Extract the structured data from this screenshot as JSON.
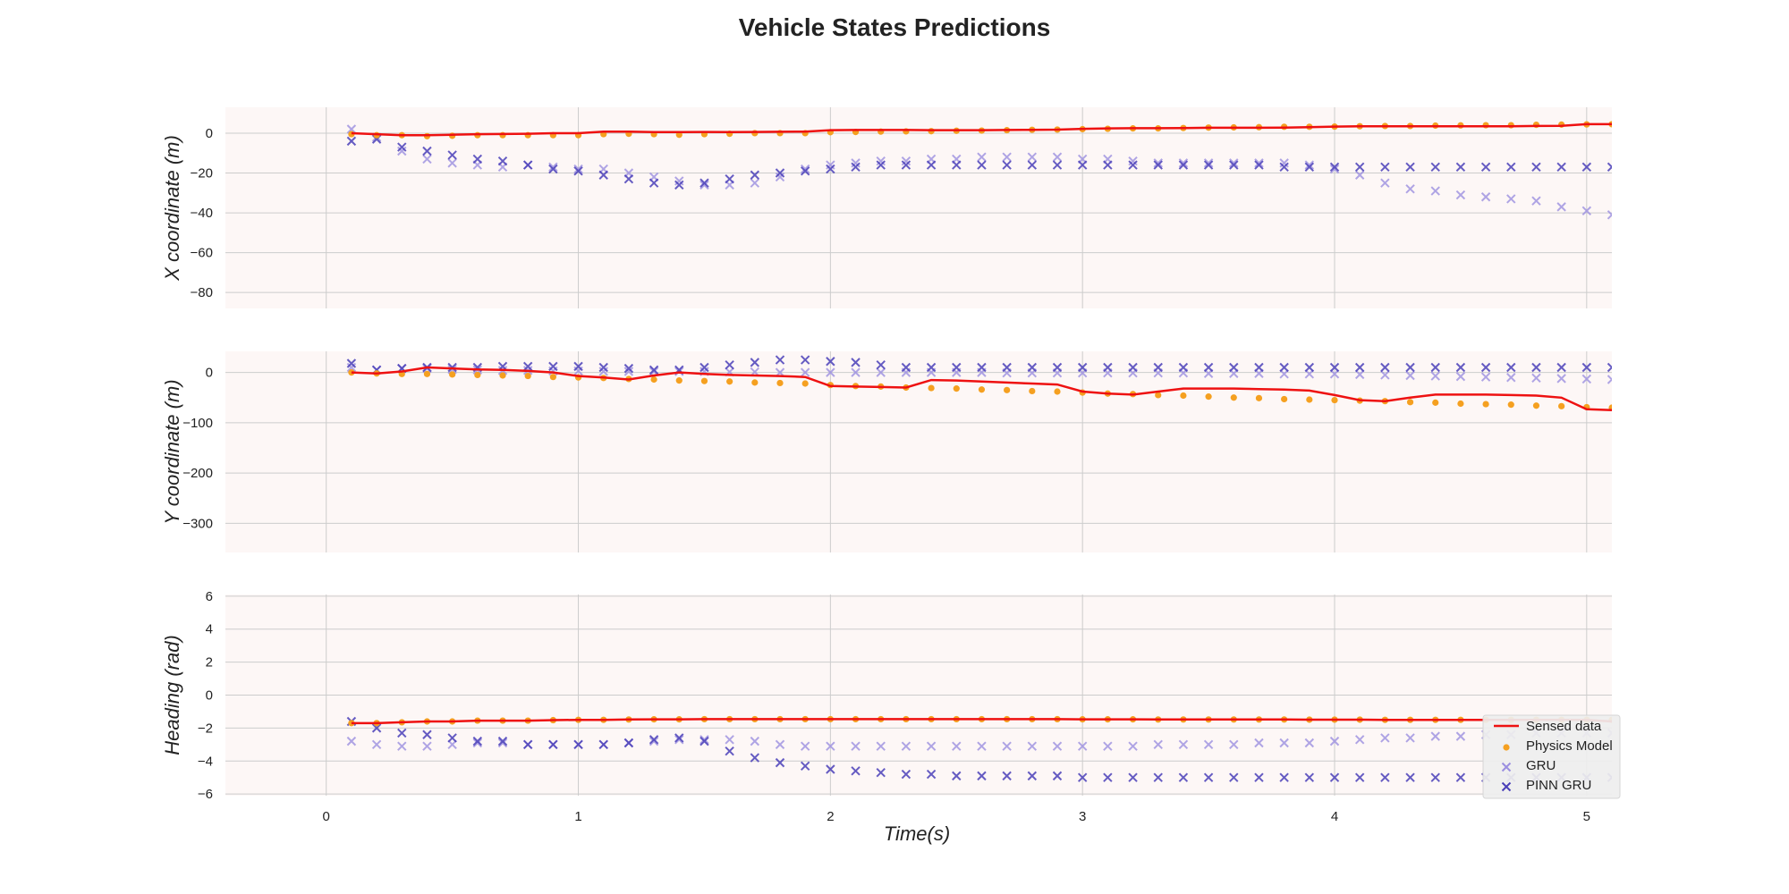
{
  "chart_data": {
    "type": "scatter",
    "title": "Vehicle States Predictions",
    "xlabel": "Time(s)",
    "xlim": [
      -0.4,
      5.1
    ],
    "xticks": [
      0,
      1,
      2,
      3,
      4,
      5
    ],
    "grid": true,
    "legend": {
      "placement": "lower-right",
      "entries": [
        "Sensed data",
        "Physics Model",
        "GRU",
        "PINN GRU"
      ]
    },
    "colors": {
      "sensed": "#ee1111",
      "physics": "#f5a020",
      "gru": "#9b8fe0",
      "pinn": "#4a3fb8",
      "panel_bg": "#fdf7f6",
      "grid": "#cccccc"
    },
    "x": [
      0.1,
      0.2,
      0.3,
      0.4,
      0.5,
      0.6,
      0.7,
      0.8,
      0.9,
      1.0,
      1.1,
      1.2,
      1.3,
      1.4,
      1.5,
      1.6,
      1.7,
      1.8,
      1.9,
      2.0,
      2.1,
      2.2,
      2.3,
      2.4,
      2.5,
      2.6,
      2.7,
      2.8,
      2.9,
      3.0,
      3.1,
      3.2,
      3.3,
      3.4,
      3.5,
      3.6,
      3.7,
      3.8,
      3.9,
      4.0,
      4.1,
      4.2,
      4.3,
      4.4,
      4.5,
      4.6,
      4.7,
      4.8,
      4.9,
      5.0,
      5.1
    ],
    "subplots": [
      {
        "ylabel": "X coordinate (m)",
        "ylim": [
          -88,
          13
        ],
        "yticks": [
          0,
          -20,
          -40,
          -60,
          -80
        ],
        "series": [
          {
            "name": "Sensed data",
            "kind": "line",
            "values": [
              0,
              -0.5,
              -1,
              -1,
              -0.8,
              -0.5,
              -0.4,
              -0.3,
              0,
              0,
              0.8,
              0.8,
              0.5,
              0.5,
              0.6,
              0.5,
              0.6,
              0.7,
              0.8,
              1.5,
              1.6,
              1.6,
              1.6,
              1.5,
              1.5,
              1.5,
              1.6,
              1.7,
              1.8,
              2.2,
              2.4,
              2.5,
              2.5,
              2.6,
              2.7,
              2.7,
              2.7,
              2.8,
              3,
              3.3,
              3.5,
              3.5,
              3.5,
              3.5,
              3.5,
              3.5,
              3.5,
              3.6,
              3.7,
              4.5,
              4.5
            ]
          },
          {
            "name": "Physics Model",
            "kind": "dots",
            "values": [
              -0.5,
              -1,
              -1,
              -1.5,
              -1.3,
              -1,
              -1,
              -1,
              -1,
              -1,
              -0.5,
              -0.3,
              -0.5,
              -0.8,
              -0.5,
              -0.3,
              0,
              0,
              0,
              0.5,
              0.6,
              0.8,
              0.9,
              1,
              1.2,
              1.3,
              1.5,
              1.7,
              1.8,
              2,
              2.2,
              2.4,
              2.4,
              2.6,
              2.8,
              2.9,
              3,
              3.2,
              3.2,
              3.3,
              3.5,
              3.6,
              3.6,
              3.8,
              3.9,
              4,
              4,
              4.2,
              4.3,
              4.4,
              4.5
            ]
          },
          {
            "name": "GRU",
            "kind": "x",
            "values": [
              2,
              -2,
              -9,
              -13,
              -15,
              -16,
              -17,
              -16,
              -17,
              -18,
              -18,
              -20,
              -22,
              -24,
              -26,
              -26,
              -25,
              -22,
              -18,
              -16,
              -15,
              -14,
              -14,
              -13,
              -13,
              -12,
              -12,
              -12,
              -12,
              -13,
              -13,
              -14,
              -15,
              -15,
              -15,
              -15,
              -15,
              -15,
              -16,
              -18,
              -21,
              -25,
              -28,
              -29,
              -31,
              -32,
              -33,
              -34,
              -37,
              -39,
              -41
            ]
          },
          {
            "name": "PINN GRU",
            "kind": "x",
            "values": [
              -4,
              -3,
              -7,
              -9,
              -11,
              -13,
              -14,
              -16,
              -18,
              -19,
              -21,
              -23,
              -25,
              -26,
              -25,
              -23,
              -21,
              -20,
              -19,
              -18,
              -17,
              -16,
              -16,
              -16,
              -16,
              -16,
              -16,
              -16,
              -16,
              -16,
              -16,
              -16,
              -16,
              -16,
              -16,
              -16,
              -16,
              -17,
              -17,
              -17,
              -17,
              -17,
              -17,
              -17,
              -17,
              -17,
              -17,
              -17,
              -17,
              -17,
              -17
            ]
          }
        ]
      },
      {
        "ylabel": "Y coordinate (m)",
        "ylim": [
          -358,
          42
        ],
        "yticks": [
          0,
          -100,
          -200,
          -300
        ],
        "series": [
          {
            "name": "Sensed data",
            "kind": "line",
            "values": [
              0,
              -2,
              2,
              10,
              8,
              6,
              5,
              3,
              0,
              -7,
              -10,
              -14,
              -6,
              0,
              -3,
              -5,
              -6,
              -7,
              -9,
              -27,
              -28,
              -29,
              -30,
              -15,
              -16,
              -18,
              -20,
              -22,
              -24,
              -38,
              -42,
              -44,
              -38,
              -32,
              -32,
              -32,
              -33,
              -34,
              -36,
              -45,
              -55,
              -57,
              -50,
              -44,
              -44,
              -44,
              -45,
              -46,
              -50,
              -73,
              -75
            ]
          },
          {
            "name": "Physics Model",
            "kind": "dots",
            "values": [
              0,
              -2,
              -3,
              -3,
              -4,
              -5,
              -6,
              -7,
              -9,
              -10,
              -11,
              -13,
              -14,
              -16,
              -17,
              -18,
              -20,
              -21,
              -22,
              -25,
              -27,
              -28,
              -30,
              -31,
              -32,
              -34,
              -35,
              -37,
              -38,
              -40,
              -42,
              -43,
              -45,
              -46,
              -48,
              -50,
              -51,
              -53,
              -54,
              -55,
              -56,
              -57,
              -59,
              -60,
              -62,
              -63,
              -64,
              -66,
              -67,
              -69,
              -70
            ]
          },
          {
            "name": "GRU",
            "kind": "x",
            "values": [
              10,
              5,
              8,
              8,
              6,
              5,
              4,
              4,
              3,
              3,
              2,
              2,
              2,
              2,
              2,
              1,
              1,
              0,
              0,
              0,
              0,
              0,
              0,
              0,
              0,
              0,
              -1,
              -1,
              -1,
              -1,
              -1,
              -1,
              -1,
              -1,
              -2,
              -2,
              -2,
              -3,
              -3,
              -3,
              -4,
              -5,
              -6,
              -7,
              -8,
              -9,
              -10,
              -11,
              -12,
              -13,
              -14
            ]
          },
          {
            "name": "PINN GRU",
            "kind": "x",
            "values": [
              18,
              5,
              8,
              10,
              10,
              10,
              12,
              12,
              12,
              12,
              10,
              8,
              5,
              5,
              10,
              15,
              20,
              25,
              25,
              22,
              20,
              15,
              10,
              10,
              10,
              10,
              10,
              10,
              10,
              10,
              10,
              10,
              10,
              10,
              10,
              10,
              10,
              10,
              10,
              10,
              10,
              10,
              10,
              10,
              10,
              10,
              10,
              10,
              10,
              10,
              10
            ]
          }
        ]
      },
      {
        "ylabel": "Heading (rad)",
        "ylim": [
          -6.1,
          6.1
        ],
        "yticks": [
          6,
          4,
          2,
          0,
          -2,
          -4,
          -6
        ],
        "series": [
          {
            "name": "Sensed data",
            "kind": "line",
            "values": [
              -1.7,
              -1.7,
              -1.65,
              -1.6,
              -1.6,
              -1.55,
              -1.55,
              -1.55,
              -1.52,
              -1.5,
              -1.5,
              -1.48,
              -1.47,
              -1.47,
              -1.46,
              -1.46,
              -1.46,
              -1.46,
              -1.46,
              -1.46,
              -1.46,
              -1.46,
              -1.46,
              -1.46,
              -1.46,
              -1.46,
              -1.46,
              -1.46,
              -1.46,
              -1.47,
              -1.47,
              -1.47,
              -1.48,
              -1.48,
              -1.48,
              -1.48,
              -1.48,
              -1.48,
              -1.49,
              -1.49,
              -1.49,
              -1.5,
              -1.5,
              -1.5,
              -1.5,
              -1.5,
              -1.5,
              -1.5,
              -1.5,
              -1.5,
              -1.6
            ]
          },
          {
            "name": "Physics Model",
            "kind": "dots",
            "values": [
              -1.7,
              -1.7,
              -1.65,
              -1.6,
              -1.6,
              -1.55,
              -1.55,
              -1.55,
              -1.52,
              -1.5,
              -1.5,
              -1.48,
              -1.47,
              -1.47,
              -1.46,
              -1.46,
              -1.46,
              -1.46,
              -1.46,
              -1.46,
              -1.46,
              -1.46,
              -1.46,
              -1.46,
              -1.46,
              -1.46,
              -1.46,
              -1.46,
              -1.46,
              -1.47,
              -1.47,
              -1.47,
              -1.48,
              -1.48,
              -1.48,
              -1.48,
              -1.48,
              -1.48,
              -1.49,
              -1.49,
              -1.49,
              -1.5,
              -1.5,
              -1.5,
              -1.5,
              -1.5,
              -1.5,
              -1.5,
              -1.5,
              -1.5,
              -1.5
            ]
          },
          {
            "name": "GRU",
            "kind": "x",
            "values": [
              -2.8,
              -3.0,
              -3.1,
              -3.1,
              -3.0,
              -2.9,
              -2.9,
              -3.0,
              -3.0,
              -3.0,
              -3.0,
              -2.9,
              -2.8,
              -2.7,
              -2.7,
              -2.7,
              -2.8,
              -3.0,
              -3.1,
              -3.1,
              -3.1,
              -3.1,
              -3.1,
              -3.1,
              -3.1,
              -3.1,
              -3.1,
              -3.1,
              -3.1,
              -3.1,
              -3.1,
              -3.1,
              -3.0,
              -3.0,
              -3.0,
              -3.0,
              -2.9,
              -2.9,
              -2.9,
              -2.8,
              -2.7,
              -2.6,
              -2.6,
              -2.5,
              -2.5,
              -2.4,
              -2.4,
              -2.3,
              -2.3,
              -2.3,
              -2.3
            ]
          },
          {
            "name": "PINN GRU",
            "kind": "x",
            "values": [
              -1.6,
              -2.0,
              -2.3,
              -2.4,
              -2.6,
              -2.8,
              -2.8,
              -3.0,
              -3.0,
              -3.0,
              -3.0,
              -2.9,
              -2.7,
              -2.6,
              -2.8,
              -3.4,
              -3.8,
              -4.1,
              -4.3,
              -4.5,
              -4.6,
              -4.7,
              -4.8,
              -4.8,
              -4.9,
              -4.9,
              -4.9,
              -4.9,
              -4.9,
              -5.0,
              -5.0,
              -5.0,
              -5.0,
              -5.0,
              -5.0,
              -5.0,
              -5.0,
              -5.0,
              -5.0,
              -5.0,
              -5.0,
              -5.0,
              -5.0,
              -5.0,
              -5.0,
              -5.0,
              -5.0,
              -5.0,
              -5.0,
              -5.0,
              -5.0
            ]
          }
        ]
      }
    ]
  }
}
